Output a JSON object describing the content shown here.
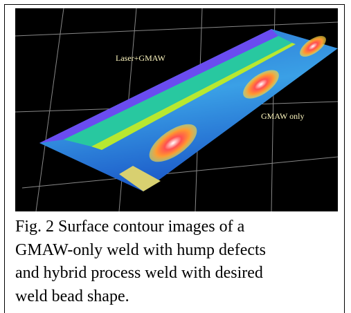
{
  "figure": {
    "labels": [
      "Laser+GMAW",
      "GMAW only"
    ],
    "caption_lines": [
      "Fig. 2 Surface contour images of a",
      "GMAW-only weld with hump defects",
      "and hybrid process weld with desired",
      "weld bead shape."
    ]
  }
}
